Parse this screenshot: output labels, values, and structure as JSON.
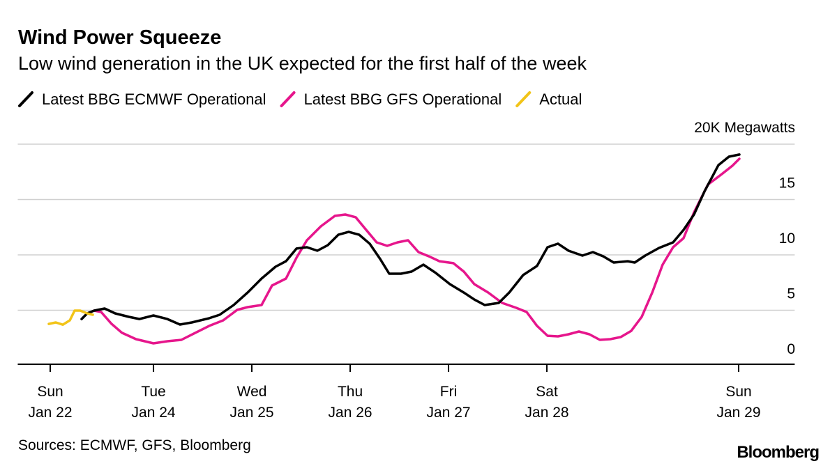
{
  "chart_data": {
    "type": "line",
    "title": "Wind Power Squeeze",
    "subtitle": "Low wind generation in the UK expected for the first half of the week",
    "source": "Sources: ECMWF, GFS, Bloomberg",
    "brand": "Bloomberg",
    "legend": "top-left",
    "grid": true,
    "xlim": [
      -3.3,
      75.7
    ],
    "xticks": [
      {
        "value": 0,
        "label": "Sun",
        "date": "Jan 22"
      },
      {
        "value": 10.5,
        "label": "Tue",
        "date": "Jan 24"
      },
      {
        "value": 20.5,
        "label": "Wed",
        "date": "Jan 25"
      },
      {
        "value": 30.5,
        "label": "Thu",
        "date": "Jan 26"
      },
      {
        "value": 40.5,
        "label": "Fri",
        "date": "Jan 27"
      },
      {
        "value": 50.5,
        "label": "Sat",
        "date": "Jan 28"
      },
      {
        "value": 70,
        "label": "Sun",
        "date": "Jan 29"
      }
    ],
    "ylim": [
      0,
      20
    ],
    "yticks": [
      0,
      5,
      10,
      15,
      {
        "value": 20,
        "label": "20K Megawatts"
      }
    ],
    "series": [
      {
        "name": "Latest BBG ECMWF Operational",
        "color": "#000000",
        "x": [
          3.19,
          3.76,
          4.47,
          5.53,
          6.6,
          8.01,
          9.08,
          10.5,
          11.91,
          13.19,
          14.4,
          16.17,
          17.23,
          18.65,
          20.07,
          21.49,
          22.91,
          23.97,
          25.04,
          26.1,
          27.16,
          28.23,
          29.29,
          30.35,
          31.42,
          32.48,
          33.55,
          34.47,
          35.67,
          36.74,
          37.94,
          39.22,
          40.64,
          42.06,
          43.12,
          44.18,
          45.6,
          46.67,
          48.09,
          49.5,
          50.57,
          51.63,
          52.7,
          54.11,
          55.18,
          56.24,
          57.3,
          58.72,
          59.43,
          60.5,
          61.91,
          63.33,
          64.4,
          65.46,
          66.52,
          67.94,
          69.01,
          70.07
        ],
        "values": [
          4.21,
          4.72,
          4.97,
          5.16,
          4.72,
          4.4,
          4.21,
          4.53,
          4.21,
          3.71,
          3.9,
          4.28,
          4.59,
          5.47,
          6.6,
          7.86,
          8.93,
          9.43,
          10.57,
          10.69,
          10.38,
          10.88,
          11.82,
          12.08,
          11.82,
          11.01,
          9.62,
          8.3,
          8.3,
          8.49,
          9.12,
          8.36,
          7.36,
          6.6,
          5.97,
          5.47,
          5.66,
          6.6,
          8.18,
          9.0,
          10.69,
          11.01,
          10.38,
          9.94,
          10.25,
          9.87,
          9.31,
          9.43,
          9.31,
          9.94,
          10.63,
          11.13,
          12.26,
          13.65,
          15.72,
          18.11,
          18.87,
          19.06
        ]
      },
      {
        "name": "Latest BBG GFS Operational",
        "color": "#e6168c",
        "x": [
          4.47,
          5.18,
          6.24,
          7.3,
          8.72,
          10.5,
          11.91,
          13.33,
          14.75,
          16.17,
          17.59,
          19.01,
          20.07,
          21.49,
          22.55,
          23.97,
          25.04,
          26.1,
          27.52,
          28.94,
          30.0,
          31.06,
          32.13,
          33.19,
          34.26,
          35.32,
          36.38,
          37.45,
          38.51,
          39.57,
          40.99,
          42.06,
          43.12,
          44.54,
          45.96,
          47.38,
          48.44,
          49.5,
          50.57,
          51.63,
          52.7,
          53.76,
          54.82,
          55.89,
          56.95,
          58.01,
          59.08,
          60.14,
          61.21,
          62.27,
          63.33,
          64.4,
          65.46,
          66.88,
          68.3,
          69.36,
          70.07
        ],
        "values": [
          4.97,
          4.84,
          3.77,
          2.96,
          2.39,
          2.01,
          2.2,
          2.33,
          2.96,
          3.59,
          4.09,
          5.03,
          5.28,
          5.47,
          7.23,
          7.86,
          9.75,
          11.32,
          12.58,
          13.52,
          13.65,
          13.4,
          12.26,
          11.13,
          10.82,
          11.13,
          11.32,
          10.25,
          9.87,
          9.43,
          9.25,
          8.49,
          7.36,
          6.6,
          5.66,
          5.22,
          4.84,
          3.59,
          2.7,
          2.64,
          2.83,
          3.08,
          2.83,
          2.33,
          2.39,
          2.58,
          3.14,
          4.4,
          6.6,
          9.12,
          10.69,
          11.51,
          13.84,
          16.35,
          17.3,
          18.05,
          18.68
        ]
      },
      {
        "name": "Actual",
        "color": "#f2c418",
        "x": [
          -0.14,
          0.57,
          1.28,
          1.99,
          2.48,
          3.05,
          3.76,
          4.33
        ],
        "values": [
          3.77,
          3.9,
          3.7,
          4.09,
          4.97,
          4.97,
          4.72,
          4.59
        ]
      }
    ]
  }
}
